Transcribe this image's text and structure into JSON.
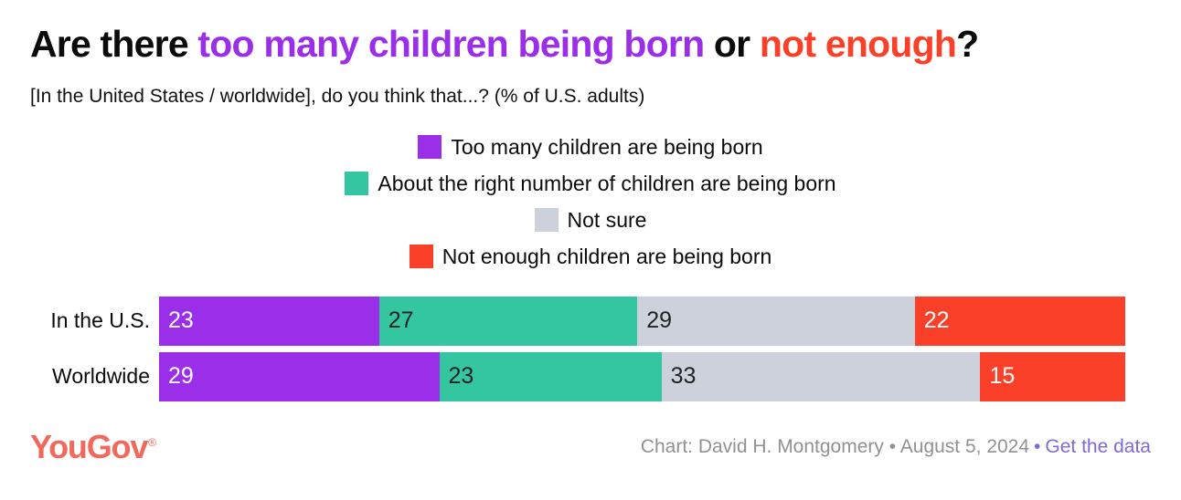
{
  "title": {
    "segments": [
      {
        "text": "Are there ",
        "color": "#0b0b0b"
      },
      {
        "text": "too many children being born",
        "color": "#9b2fe9"
      },
      {
        "text": " or ",
        "color": "#0b0b0b"
      },
      {
        "text": "not enough",
        "color": "#fb4029"
      },
      {
        "text": "?",
        "color": "#0b0b0b"
      }
    ]
  },
  "subtitle": "[In the United States / worldwide], do you think that...? (% of U.S. adults)",
  "chart_data": {
    "type": "bar",
    "stacked": true,
    "orientation": "horizontal",
    "value_labels": "inside-left",
    "legend_position": "top-center",
    "categories": [
      "In the U.S.",
      "Worldwide"
    ],
    "series": [
      {
        "name": "Too many children are being born",
        "color": "#9b2fe9",
        "label_color": "#ffffff",
        "values": [
          23,
          29
        ]
      },
      {
        "name": "About the right number of children are being born",
        "color": "#33c6a1",
        "label_color": "#222222",
        "values": [
          27,
          23
        ]
      },
      {
        "name": "Not sure",
        "color": "#cdd1db",
        "label_color": "#222222",
        "values": [
          29,
          33
        ]
      },
      {
        "name": "Not enough children are being born",
        "color": "#fb4029",
        "label_color": "#ffffff",
        "values": [
          22,
          15
        ]
      }
    ],
    "title": "Are there too many children being born or not enough?",
    "xlabel": "",
    "ylabel": "",
    "xlim": [
      0,
      100
    ]
  },
  "footer": {
    "logo": "YouGov",
    "logo_mark": "®",
    "logo_color": "#f1685c",
    "credit": "Chart: David H. Montgomery • August 5, 2024",
    "separator": "•",
    "link_label": "Get the data",
    "link_color": "#7c6bdb"
  }
}
